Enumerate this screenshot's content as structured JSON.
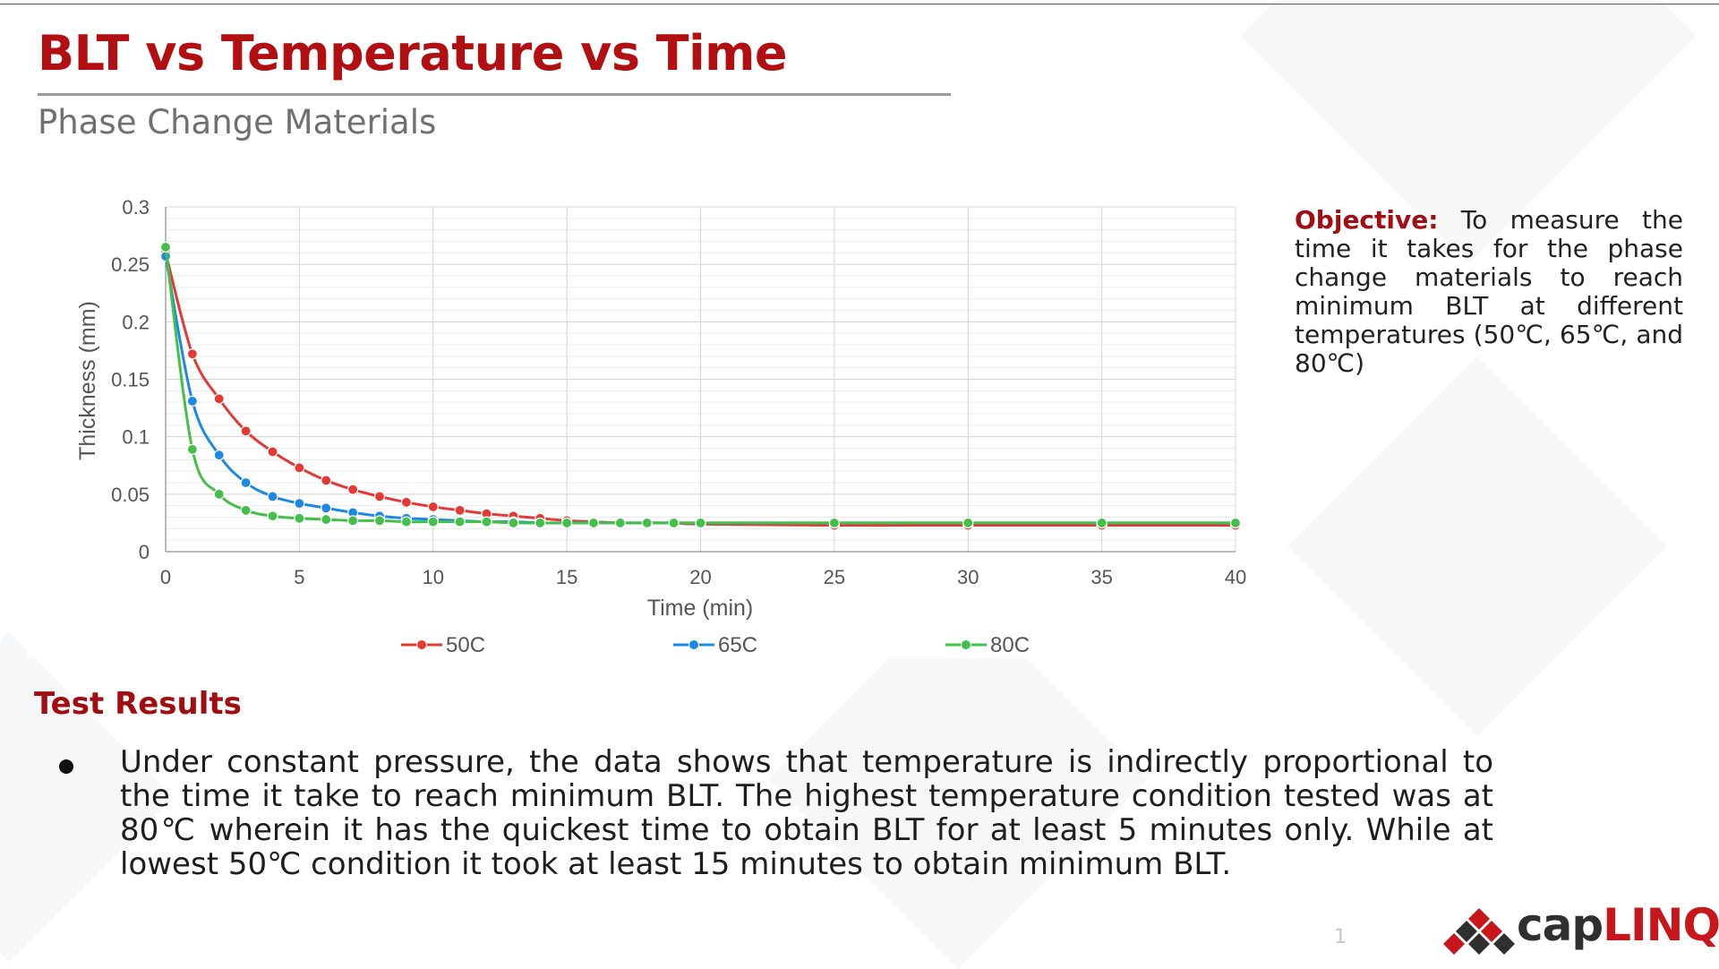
{
  "slide": {
    "title": "BLT vs Temperature vs Time",
    "subtitle": "Phase Change Materials",
    "page_number": "1"
  },
  "objective": {
    "label": "Objective:",
    "text": "To measure the time it takes for the phase change materials to reach minimum BLT at different temperatures (50℃, 65℃, and 80℃)"
  },
  "results": {
    "heading": "Test Results",
    "bullets": [
      "Under constant pressure, the data shows that temperature is indirectly proportional to the time it take to reach minimum BLT. The highest temperature condition tested was at 80℃ wherein it has the quickest time to obtain BLT for at least 5 minutes only. While at lowest 50℃ condition it took at least 15 minutes to obtain minimum BLT."
    ]
  },
  "logo": {
    "text_dark": "cap",
    "text_red": "LINQ",
    "colors": {
      "dark": "#2f2f2f",
      "red": "#c8161d"
    }
  },
  "chart_data": {
    "type": "line",
    "title": "",
    "xlabel": "Time (min)",
    "ylabel": "Thickness (mm)",
    "xlim": [
      0,
      40
    ],
    "ylim": [
      0,
      0.3
    ],
    "xticks": [
      "0",
      "5",
      "10",
      "15",
      "20",
      "25",
      "30",
      "35",
      "40"
    ],
    "yticks": [
      "0",
      "0.05",
      "0.1",
      "0.15",
      "0.2",
      "0.25",
      "0.3"
    ],
    "grid": true,
    "legend_position": "bottom",
    "series": [
      {
        "name": "50C",
        "color": "#e53935",
        "x": [
          0,
          1,
          2,
          3,
          4,
          5,
          6,
          7,
          8,
          9,
          10,
          11,
          12,
          13,
          14,
          15,
          16,
          17,
          18,
          19,
          20,
          25,
          30,
          35,
          40
        ],
        "y": [
          0.26,
          0.172,
          0.133,
          0.105,
          0.087,
          0.073,
          0.062,
          0.054,
          0.048,
          0.043,
          0.039,
          0.036,
          0.033,
          0.031,
          0.029,
          0.027,
          0.026,
          0.025,
          0.025,
          0.025,
          0.024,
          0.023,
          0.023,
          0.023,
          0.023
        ]
      },
      {
        "name": "65C",
        "color": "#1e88e5",
        "x": [
          0,
          1,
          2,
          3,
          4,
          5,
          6,
          7,
          8,
          9,
          10,
          11,
          12,
          13,
          14,
          15,
          16,
          17,
          18,
          19,
          20,
          25,
          30,
          35,
          40
        ],
        "y": [
          0.257,
          0.131,
          0.084,
          0.06,
          0.048,
          0.042,
          0.038,
          0.034,
          0.031,
          0.029,
          0.028,
          0.027,
          0.026,
          0.026,
          0.025,
          0.025,
          0.025,
          0.025,
          0.025,
          0.025,
          0.025,
          0.025,
          0.025,
          0.025,
          0.025
        ]
      },
      {
        "name": "80C",
        "color": "#43c04a",
        "x": [
          0,
          1,
          2,
          3,
          4,
          5,
          6,
          7,
          8,
          9,
          10,
          11,
          12,
          13,
          14,
          15,
          16,
          17,
          18,
          19,
          20,
          25,
          30,
          35,
          40
        ],
        "y": [
          0.265,
          0.089,
          0.05,
          0.036,
          0.031,
          0.029,
          0.028,
          0.027,
          0.027,
          0.026,
          0.026,
          0.026,
          0.026,
          0.025,
          0.025,
          0.025,
          0.025,
          0.025,
          0.025,
          0.025,
          0.025,
          0.025,
          0.025,
          0.025,
          0.025
        ]
      }
    ]
  }
}
